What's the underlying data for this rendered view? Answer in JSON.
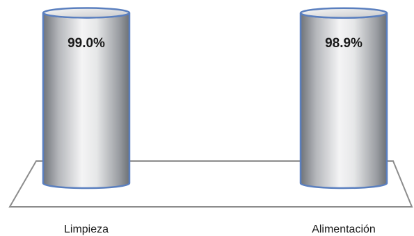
{
  "chart_data": {
    "type": "bar",
    "style": "3d-cylinder",
    "categories": [
      "Limpieza",
      "Alimentación"
    ],
    "values": [
      99.0,
      98.9
    ],
    "value_labels": [
      "99.0%",
      "98.9%"
    ],
    "ylim": [
      0,
      100
    ],
    "grid": false,
    "legend": "none",
    "colors": {
      "cylinder_fill": "#d9dadc",
      "cylinder_edge": "#5a7fbf",
      "floor": "#8c8c8c",
      "text": "#1a1a1a"
    }
  }
}
